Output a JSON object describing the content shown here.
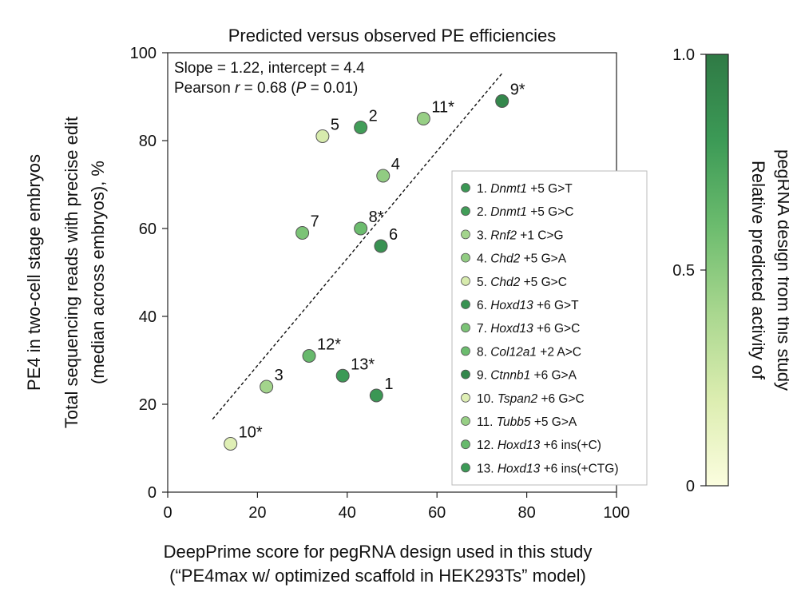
{
  "chart_data": {
    "type": "scatter",
    "title": "Predicted versus observed PE efficiencies",
    "xlabel_lines": [
      "DeepPrime score for pegRNA design used in this study",
      "(“PE4max w/ optimized scaffold in HEK293Ts” model)"
    ],
    "ylabel_lines": [
      "PE4 in two-cell stage embryos",
      "Total sequencing reads with precise edit",
      "(median across embryos), %"
    ],
    "xlim": [
      0,
      100
    ],
    "ylim": [
      0,
      100
    ],
    "xticks": [
      0,
      20,
      40,
      60,
      80,
      100
    ],
    "yticks": [
      0,
      20,
      40,
      60,
      80,
      100
    ],
    "stats": {
      "line1": "Slope = 1.22, intercept = 4.4",
      "line2_prefix": "Pearson ",
      "line2_r": "r",
      "line2_mid": " = 0.68 (",
      "line2_p": "P",
      "line2_suffix": " = 0.01)"
    },
    "fit_line": {
      "x": [
        10,
        74.5
      ],
      "y": [
        16.6,
        95.3
      ]
    },
    "points": [
      {
        "label": "1",
        "x": 46.5,
        "y": 22,
        "activity": 0.82
      },
      {
        "label": "2",
        "x": 43.0,
        "y": 83,
        "activity": 0.78
      },
      {
        "label": "3",
        "x": 22.0,
        "y": 24,
        "activity": 0.42
      },
      {
        "label": "4",
        "x": 48.0,
        "y": 72,
        "activity": 0.48
      },
      {
        "label": "5",
        "x": 34.5,
        "y": 81,
        "activity": 0.22
      },
      {
        "label": "6",
        "x": 47.5,
        "y": 56,
        "activity": 0.85
      },
      {
        "label": "7",
        "x": 30.0,
        "y": 59,
        "activity": 0.55
      },
      {
        "label": "8*",
        "x": 43.0,
        "y": 60,
        "activity": 0.6
      },
      {
        "label": "9*",
        "x": 74.5,
        "y": 89,
        "activity": 0.92
      },
      {
        "label": "10*",
        "x": 14.0,
        "y": 11,
        "activity": 0.18
      },
      {
        "label": "11*",
        "x": 57.0,
        "y": 85,
        "activity": 0.46
      },
      {
        "label": "12*",
        "x": 31.5,
        "y": 31,
        "activity": 0.62
      },
      {
        "label": "13*",
        "x": 39.0,
        "y": 26.5,
        "activity": 0.8
      }
    ],
    "legend": {
      "position": "right",
      "entries": [
        {
          "num": "1.",
          "gene": "Dnmt1",
          "edit": "+5 G>T"
        },
        {
          "num": "2.",
          "gene": "Dnmt1",
          "edit": "+5 G>C"
        },
        {
          "num": "3.",
          "gene": "Rnf2",
          "edit": "+1 C>G"
        },
        {
          "num": "4.",
          "gene": "Chd2",
          "edit": "+5 G>A"
        },
        {
          "num": "5.",
          "gene": "Chd2",
          "edit": "+5 G>C"
        },
        {
          "num": "6.",
          "gene": "Hoxd13",
          "edit": "+6 G>T"
        },
        {
          "num": "7.",
          "gene": "Hoxd13",
          "edit": "+6 G>C"
        },
        {
          "num": "8.",
          "gene": "Col12a1",
          "edit": "+2 A>C"
        },
        {
          "num": "9.",
          "gene": "Ctnnb1",
          "edit": "+6 G>A"
        },
        {
          "num": "10.",
          "gene": "Tspan2",
          "edit": "+6 G>C"
        },
        {
          "num": "11.",
          "gene": "Tubb5",
          "edit": "+5 G>A"
        },
        {
          "num": "12.",
          "gene": "Hoxd13",
          "edit": "+6 ins(+C)"
        },
        {
          "num": "13.",
          "gene": "Hoxd13",
          "edit": "+6 ins(+CTG)"
        }
      ]
    },
    "colorbar": {
      "label_lines": [
        "Relative predicted activity of",
        "pegRNA design from this study"
      ],
      "min": 0,
      "max": 1,
      "ticks": [
        0,
        0.5,
        1.0
      ],
      "tick_labels": [
        "0",
        "0.5",
        "1.0"
      ],
      "colors": [
        "#fbfddf",
        "#dcedb0",
        "#a9d78f",
        "#6cbc6e",
        "#3c9a56",
        "#2f7a45"
      ]
    }
  }
}
